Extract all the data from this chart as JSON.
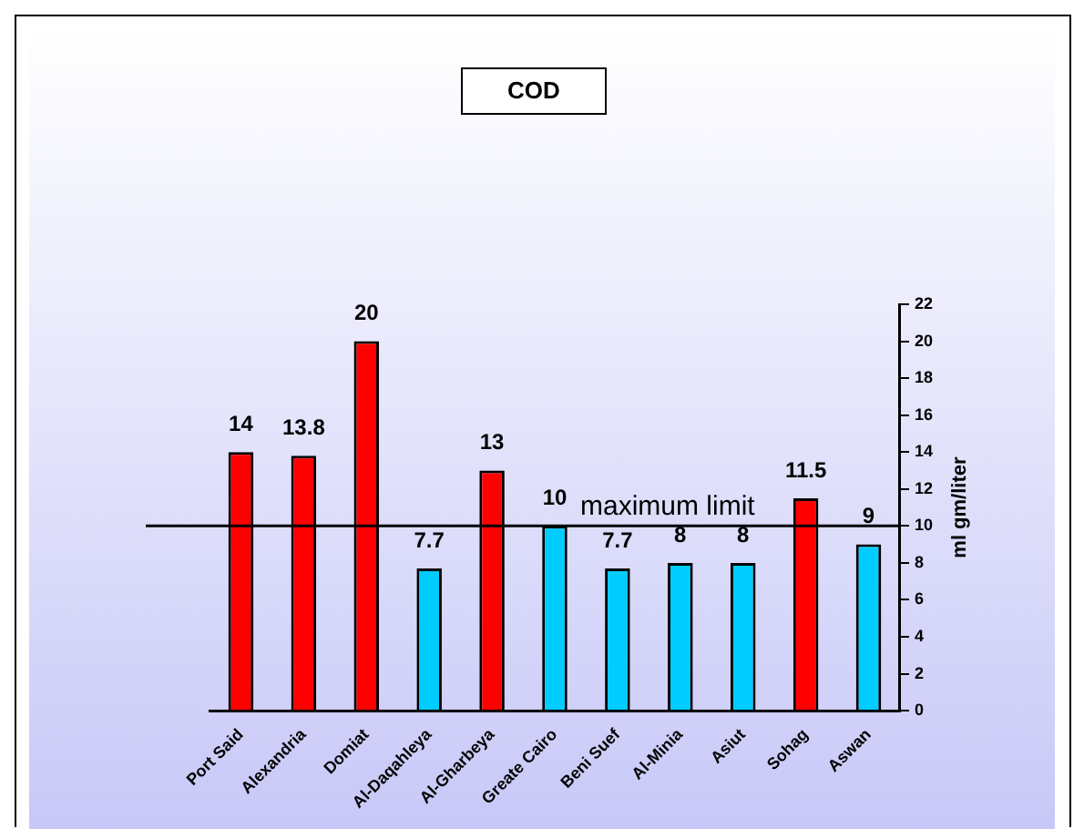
{
  "chart_data": {
    "type": "bar",
    "title": "COD",
    "ylabel": "ml gm/liter",
    "categories": [
      "Port Said",
      "Alexandria",
      "Domiat",
      "Al-Daqahleya",
      "Al-Gharbeya",
      "Greate Cairo",
      "Beni Suef",
      "Al-Minia",
      "Asiut",
      "Sohag",
      "Aswan"
    ],
    "values": [
      14,
      13.8,
      20,
      7.7,
      13,
      10,
      7.7,
      8,
      8,
      11.5,
      9
    ],
    "colors": [
      "#ff0000",
      "#ff0000",
      "#ff0000",
      "#00ccff",
      "#ff0000",
      "#00ccff",
      "#00ccff",
      "#00ccff",
      "#00ccff",
      "#ff0000",
      "#00ccff"
    ],
    "ylim": [
      0,
      22
    ],
    "yticks": [
      0,
      2,
      4,
      6,
      8,
      10,
      12,
      14,
      16,
      18,
      20,
      22
    ],
    "ref_lines": [
      {
        "axis": "y",
        "value": 10,
        "label": "maximum limit",
        "color": "#000000"
      }
    ],
    "data_labels": true,
    "grid": false,
    "legend": false
  }
}
